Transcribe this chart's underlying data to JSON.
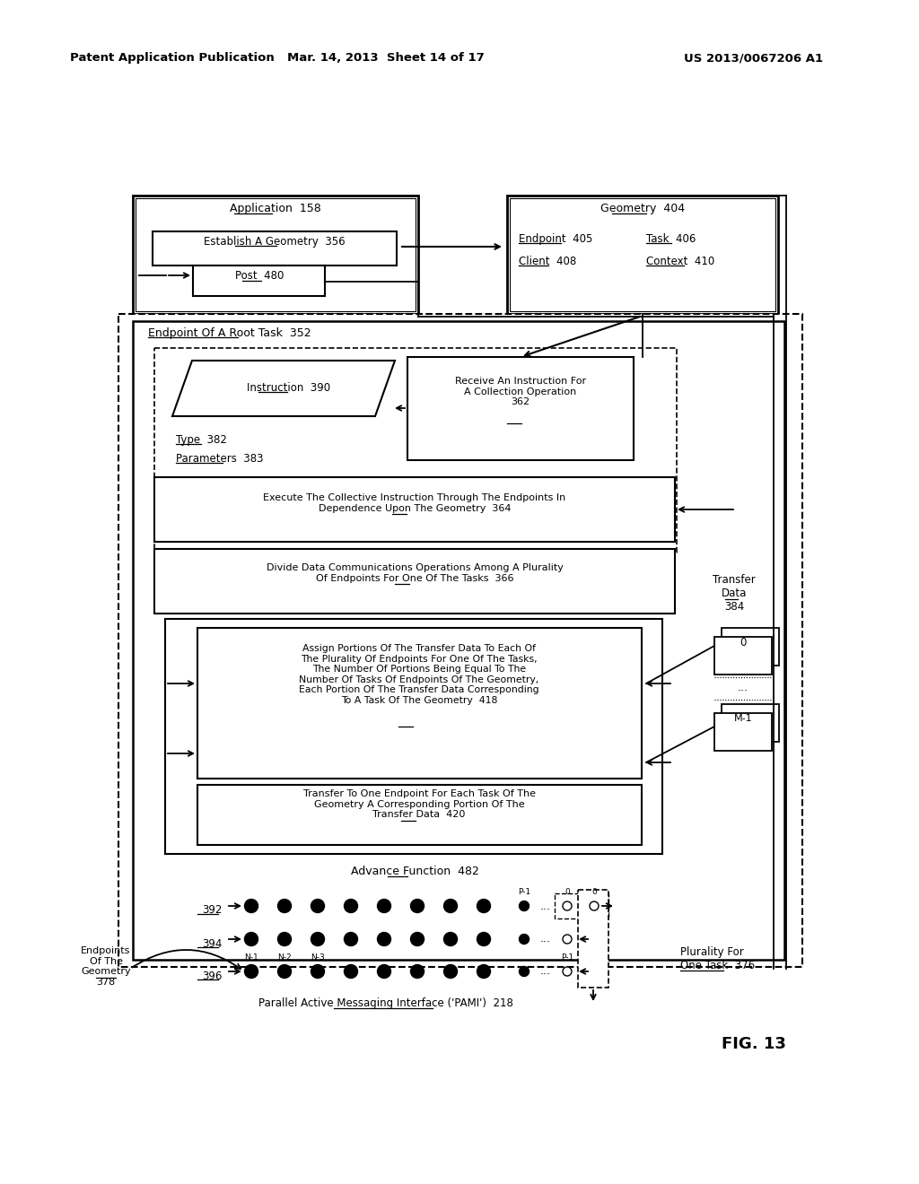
{
  "bg": "#ffffff",
  "header_left": "Patent Application Publication",
  "header_mid": "Mar. 14, 2013  Sheet 14 of 17",
  "header_right": "US 2013/0067206 A1",
  "fig_label": "FIG. 13"
}
